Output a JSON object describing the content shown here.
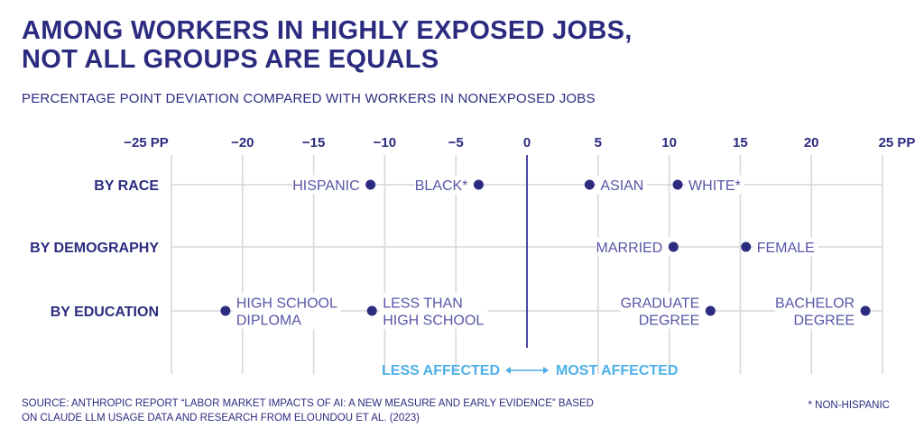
{
  "title_lines": [
    "AMONG WORKERS IN HIGHLY EXPOSED JOBS,",
    "NOT ALL GROUPS ARE EQUALS"
  ],
  "subtitle": "PERCENTAGE POINT DEVIATION COMPARED WITH WORKERS IN NONEXPOSED JOBS",
  "source": "SOURCE: ANTHROPIC REPORT “LABOR MARKET IMPACTS OF AI: A NEW MEASURE AND EARLY EVIDENCE” BASED ON CLAUDE LLM USAGE DATA AND RESEARCH FROM ELOUNDOU ET AL. (2023)",
  "note": "* NON-HISPANIC",
  "colors": {
    "navy": "#2b2b80",
    "label": "#5656a6",
    "grid": "#d6d6d6",
    "accent": "#4fb0e8"
  },
  "chart_data": {
    "type": "scatter",
    "title": "AMONG WORKERS IN HIGHLY EXPOSED JOBS, NOT ALL GROUPS ARE EQUALS",
    "xlabel": "PERCENTAGE POINT DEVIATION COMPARED WITH WORKERS IN NONEXPOSED JOBS",
    "xlim": [
      -25,
      25
    ],
    "ticks": [
      -25,
      -20,
      -15,
      -10,
      -5,
      0,
      5,
      10,
      15,
      20,
      25
    ],
    "tick_labels": [
      "−25 PP",
      "−20",
      "−15",
      "−10",
      "−5",
      "0",
      "5",
      "10",
      "15",
      "20",
      "25 PP"
    ],
    "direction_left": "LESS AFFECTED",
    "direction_right": "MOST AFFECTED",
    "rows": [
      {
        "name": "BY RACE",
        "points": [
          {
            "label": [
              "HISPANIC"
            ],
            "value": -11.0,
            "side": "left"
          },
          {
            "label": [
              "BLACK*"
            ],
            "value": -3.4,
            "side": "left"
          },
          {
            "label": [
              "ASIAN"
            ],
            "value": 4.4,
            "side": "right"
          },
          {
            "label": [
              "WHITE*"
            ],
            "value": 10.6,
            "side": "right"
          }
        ]
      },
      {
        "name": "BY DEMOGRAPHY",
        "points": [
          {
            "label": [
              "MARRIED"
            ],
            "value": 10.3,
            "side": "left"
          },
          {
            "label": [
              "FEMALE"
            ],
            "value": 15.4,
            "side": "right"
          }
        ]
      },
      {
        "name": "BY EDUCATION",
        "points": [
          {
            "label": [
              "HIGH SCHOOL",
              "DIPLOMA"
            ],
            "value": -21.2,
            "side": "right"
          },
          {
            "label": [
              "LESS THAN",
              "HIGH SCHOOL"
            ],
            "value": -10.9,
            "side": "right"
          },
          {
            "label": [
              "GRADUATE",
              "DEGREE"
            ],
            "value": 12.9,
            "side": "left"
          },
          {
            "label": [
              "BACHELOR",
              "DEGREE"
            ],
            "value": 23.8,
            "side": "left"
          }
        ]
      }
    ]
  }
}
